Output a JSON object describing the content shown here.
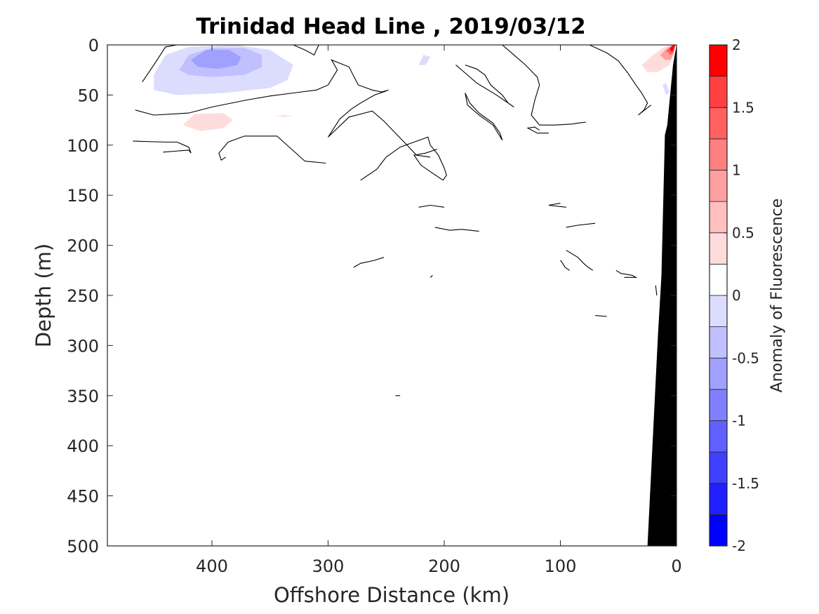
{
  "chart_data": {
    "type": "contour",
    "title": "Trinidad Head Line , 2019/03/12",
    "xlabel": "Offshore Distance (km)",
    "ylabel": "Depth (m)",
    "xlim": [
      490,
      0
    ],
    "ylim": [
      500,
      0
    ],
    "xticks": [
      400,
      300,
      200,
      100,
      0
    ],
    "yticks": [
      0,
      50,
      100,
      150,
      200,
      250,
      300,
      350,
      400,
      450,
      500
    ],
    "colorbar": {
      "label": "Anomaly of Fluorescence",
      "range": [
        -2,
        2
      ],
      "ticks": [
        2,
        1.5,
        1,
        0.5,
        0,
        -0.5,
        -1,
        -1.5,
        -2
      ],
      "levels": [
        -2,
        -1.75,
        -1.5,
        -1.25,
        -1,
        -0.75,
        -0.5,
        -0.25,
        0,
        0.25,
        0.5,
        0.75,
        1,
        1.25,
        1.5,
        1.75,
        2
      ],
      "colors": [
        "#0000ff",
        "#2020ff",
        "#4040ff",
        "#6060ff",
        "#8080ff",
        "#a0a0ff",
        "#c0c0ff",
        "#dcdcff",
        "#ffffff",
        "#ffffff",
        "#ffdcdc",
        "#ffc0c0",
        "#ffa0a0",
        "#ff8080",
        "#ff6060",
        "#ff4040",
        "#ff0000"
      ]
    },
    "anomaly_patches": [
      {
        "id": "neg-outer",
        "value": -0.25,
        "x": [
          450,
          440,
          420,
          380,
          350,
          330,
          335,
          350,
          390,
          430,
          450
        ],
        "y": [
          30,
          10,
          2,
          0,
          5,
          20,
          35,
          43,
          48,
          50,
          45
        ]
      },
      {
        "id": "neg-mid",
        "value": -0.5,
        "x": [
          428,
          420,
          400,
          372,
          357,
          357,
          372,
          400,
          420,
          428
        ],
        "y": [
          25,
          10,
          3,
          3,
          10,
          22,
          30,
          32,
          30,
          25
        ]
      },
      {
        "id": "neg-inner",
        "value": -0.75,
        "x": [
          418,
          405,
          385,
          375,
          378,
          395,
          412,
          418
        ],
        "y": [
          15,
          5,
          5,
          12,
          20,
          24,
          22,
          15
        ]
      },
      {
        "id": "pos-outer",
        "value": 0.25,
        "x": [
          440,
          420,
          380,
          340,
          312,
          303,
          310,
          340,
          380,
          420,
          440
        ],
        "y": [
          80,
          70,
          66,
          56,
          54,
          65,
          89,
          85,
          83,
          88,
          80
        ]
      },
      {
        "id": "pos-inner",
        "value": 0.5,
        "x": [
          425,
          415,
          390,
          382,
          390,
          410,
          425
        ],
        "y": [
          80,
          69,
          68,
          75,
          83,
          86,
          80
        ]
      },
      {
        "id": "pos-small",
        "value": 0.5,
        "x": [
          345,
          338,
          330,
          338,
          345
        ],
        "y": [
          71,
          70,
          71,
          72,
          71
        ]
      },
      {
        "id": "pos-speck",
        "value": 0.25,
        "x": [
          303,
          297,
          290,
          297,
          303
        ],
        "y": [
          60,
          59,
          60,
          61,
          60
        ]
      },
      {
        "id": "neg-speck",
        "value": -0.25,
        "x": [
          222,
          218,
          212,
          216,
          222
        ],
        "y": [
          20,
          10,
          12,
          20,
          20
        ]
      },
      {
        "id": "nearshore-pos1",
        "value": 0.5,
        "x": [
          30,
          20,
          12,
          6,
          3,
          6,
          16,
          25,
          30
        ],
        "y": [
          20,
          10,
          3,
          0,
          10,
          20,
          27,
          27,
          20
        ]
      },
      {
        "id": "nearshore-pos2",
        "value": 1.0,
        "x": [
          14,
          9,
          4,
          2,
          5,
          10,
          14
        ],
        "y": [
          10,
          4,
          0,
          8,
          15,
          15,
          10
        ]
      },
      {
        "id": "nearshore-pos3",
        "value": 1.5,
        "x": [
          9,
          5,
          2,
          2,
          5,
          9
        ],
        "y": [
          6,
          2,
          0,
          6,
          10,
          6
        ]
      },
      {
        "id": "nearshore-pos4",
        "value": 2.0,
        "x": [
          6,
          3,
          1,
          2,
          4,
          6
        ],
        "y": [
          4,
          0,
          0,
          4,
          7,
          4
        ]
      },
      {
        "id": "nearshore-neg",
        "value": -0.25,
        "x": [
          12,
          9,
          6,
          9,
          12
        ],
        "y": [
          40,
          38,
          48,
          50,
          40
        ]
      }
    ],
    "zero_contours": [
      {
        "x": [
          460,
          450,
          440,
          430,
          410,
          380,
          350,
          330,
          320,
          312,
          308
        ],
        "y": [
          37,
          20,
          2,
          0,
          0,
          0,
          0,
          0,
          5,
          10,
          0
        ]
      },
      {
        "x": [
          466,
          450,
          420,
          400,
          370,
          350,
          330,
          310,
          300,
          292,
          297,
          282,
          274,
          262,
          254,
          248
        ],
        "y": [
          65,
          70,
          68,
          62,
          55,
          51,
          48,
          45,
          40,
          25,
          15,
          22,
          40,
          45,
          47,
          45
        ]
      },
      {
        "x": [
          250,
          260,
          272,
          280,
          290,
          300,
          282,
          262,
          252,
          242,
          232,
          224,
          212
        ],
        "y": [
          46,
          50,
          58,
          64,
          74,
          92,
          72,
          66,
          76,
          88,
          100,
          110,
          112
        ]
      },
      {
        "x": [
          302,
          320,
          344,
          372,
          386,
          394,
          392,
          388
        ],
        "y": [
          118,
          116,
          91,
          91,
          97,
          108,
          115,
          112
        ]
      },
      {
        "x": [
          468,
          440,
          430,
          420,
          418,
          420,
          442
        ],
        "y": [
          96,
          97,
          97,
          102,
          108,
          105,
          107
        ]
      },
      {
        "x": [
          272,
          258,
          250,
          238,
          226,
          214,
          212,
          205,
          200,
          198,
          201,
          210,
          220,
          226,
          216,
          206
        ],
        "y": [
          135,
          124,
          112,
          102,
          97,
          92,
          100,
          110,
          123,
          130,
          135,
          128,
          120,
          110,
          108,
          104
        ]
      },
      {
        "x": [
          182,
          172,
          165,
          160,
          150,
          145,
          140,
          155,
          172,
          182,
          190
        ],
        "y": [
          20,
          24,
          30,
          40,
          50,
          58,
          62,
          50,
          38,
          28,
          20
        ]
      },
      {
        "x": [
          182,
          178,
          170,
          158,
          152,
          150,
          158,
          170,
          180,
          182
        ],
        "y": [
          48,
          58,
          68,
          78,
          88,
          95,
          80,
          70,
          60,
          48
        ]
      },
      {
        "x": [
          150,
          140,
          130,
          120,
          118,
          122,
          125,
          118,
          105,
          90,
          85,
          78
        ],
        "y": [
          0,
          10,
          20,
          32,
          40,
          55,
          70,
          80,
          80,
          79,
          78,
          77
        ]
      },
      {
        "x": [
          75,
          60,
          50,
          42,
          35,
          30,
          25,
          28,
          33,
          22
        ],
        "y": [
          0,
          8,
          16,
          28,
          40,
          48,
          58,
          65,
          70,
          60
        ]
      },
      {
        "x": [
          118,
          122,
          128,
          120,
          110
        ],
        "y": [
          85,
          82,
          83,
          88,
          88
        ]
      },
      {
        "x": [
          200,
          212,
          222
        ],
        "y": [
          162,
          160,
          162
        ]
      },
      {
        "x": [
          208,
          195,
          185,
          170
        ],
        "y": [
          182,
          185,
          184,
          186
        ]
      },
      {
        "x": [
          100,
          110,
          95
        ],
        "y": [
          158,
          160,
          162
        ]
      },
      {
        "x": [
          70,
          85,
          95
        ],
        "y": [
          178,
          180,
          182
        ]
      },
      {
        "x": [
          252,
          260,
          272,
          278
        ],
        "y": [
          212,
          215,
          218,
          222
        ]
      },
      {
        "x": [
          210,
          212
        ],
        "y": [
          230,
          232
        ]
      },
      {
        "x": [
          95,
          85,
          80,
          76,
          72
        ],
        "y": [
          205,
          212,
          218,
          222,
          225
        ]
      },
      {
        "x": [
          100,
          98,
          96,
          92
        ],
        "y": [
          215,
          218,
          222,
          225
        ]
      },
      {
        "x": [
          52,
          48,
          38,
          35,
          45
        ],
        "y": [
          225,
          228,
          230,
          232,
          232
        ]
      },
      {
        "x": [
          70,
          60
        ],
        "y": [
          270,
          271
        ]
      },
      {
        "x": [
          18,
          17
        ],
        "y": [
          240,
          250
        ]
      },
      {
        "x": [
          242,
          238
        ],
        "y": [
          350,
          350
        ]
      }
    ],
    "bathymetry": {
      "x": [
        0,
        3,
        8,
        10,
        13,
        16,
        25,
        27
      ],
      "y": [
        0,
        20,
        80,
        90,
        230,
        290,
        500,
        500
      ]
    }
  }
}
